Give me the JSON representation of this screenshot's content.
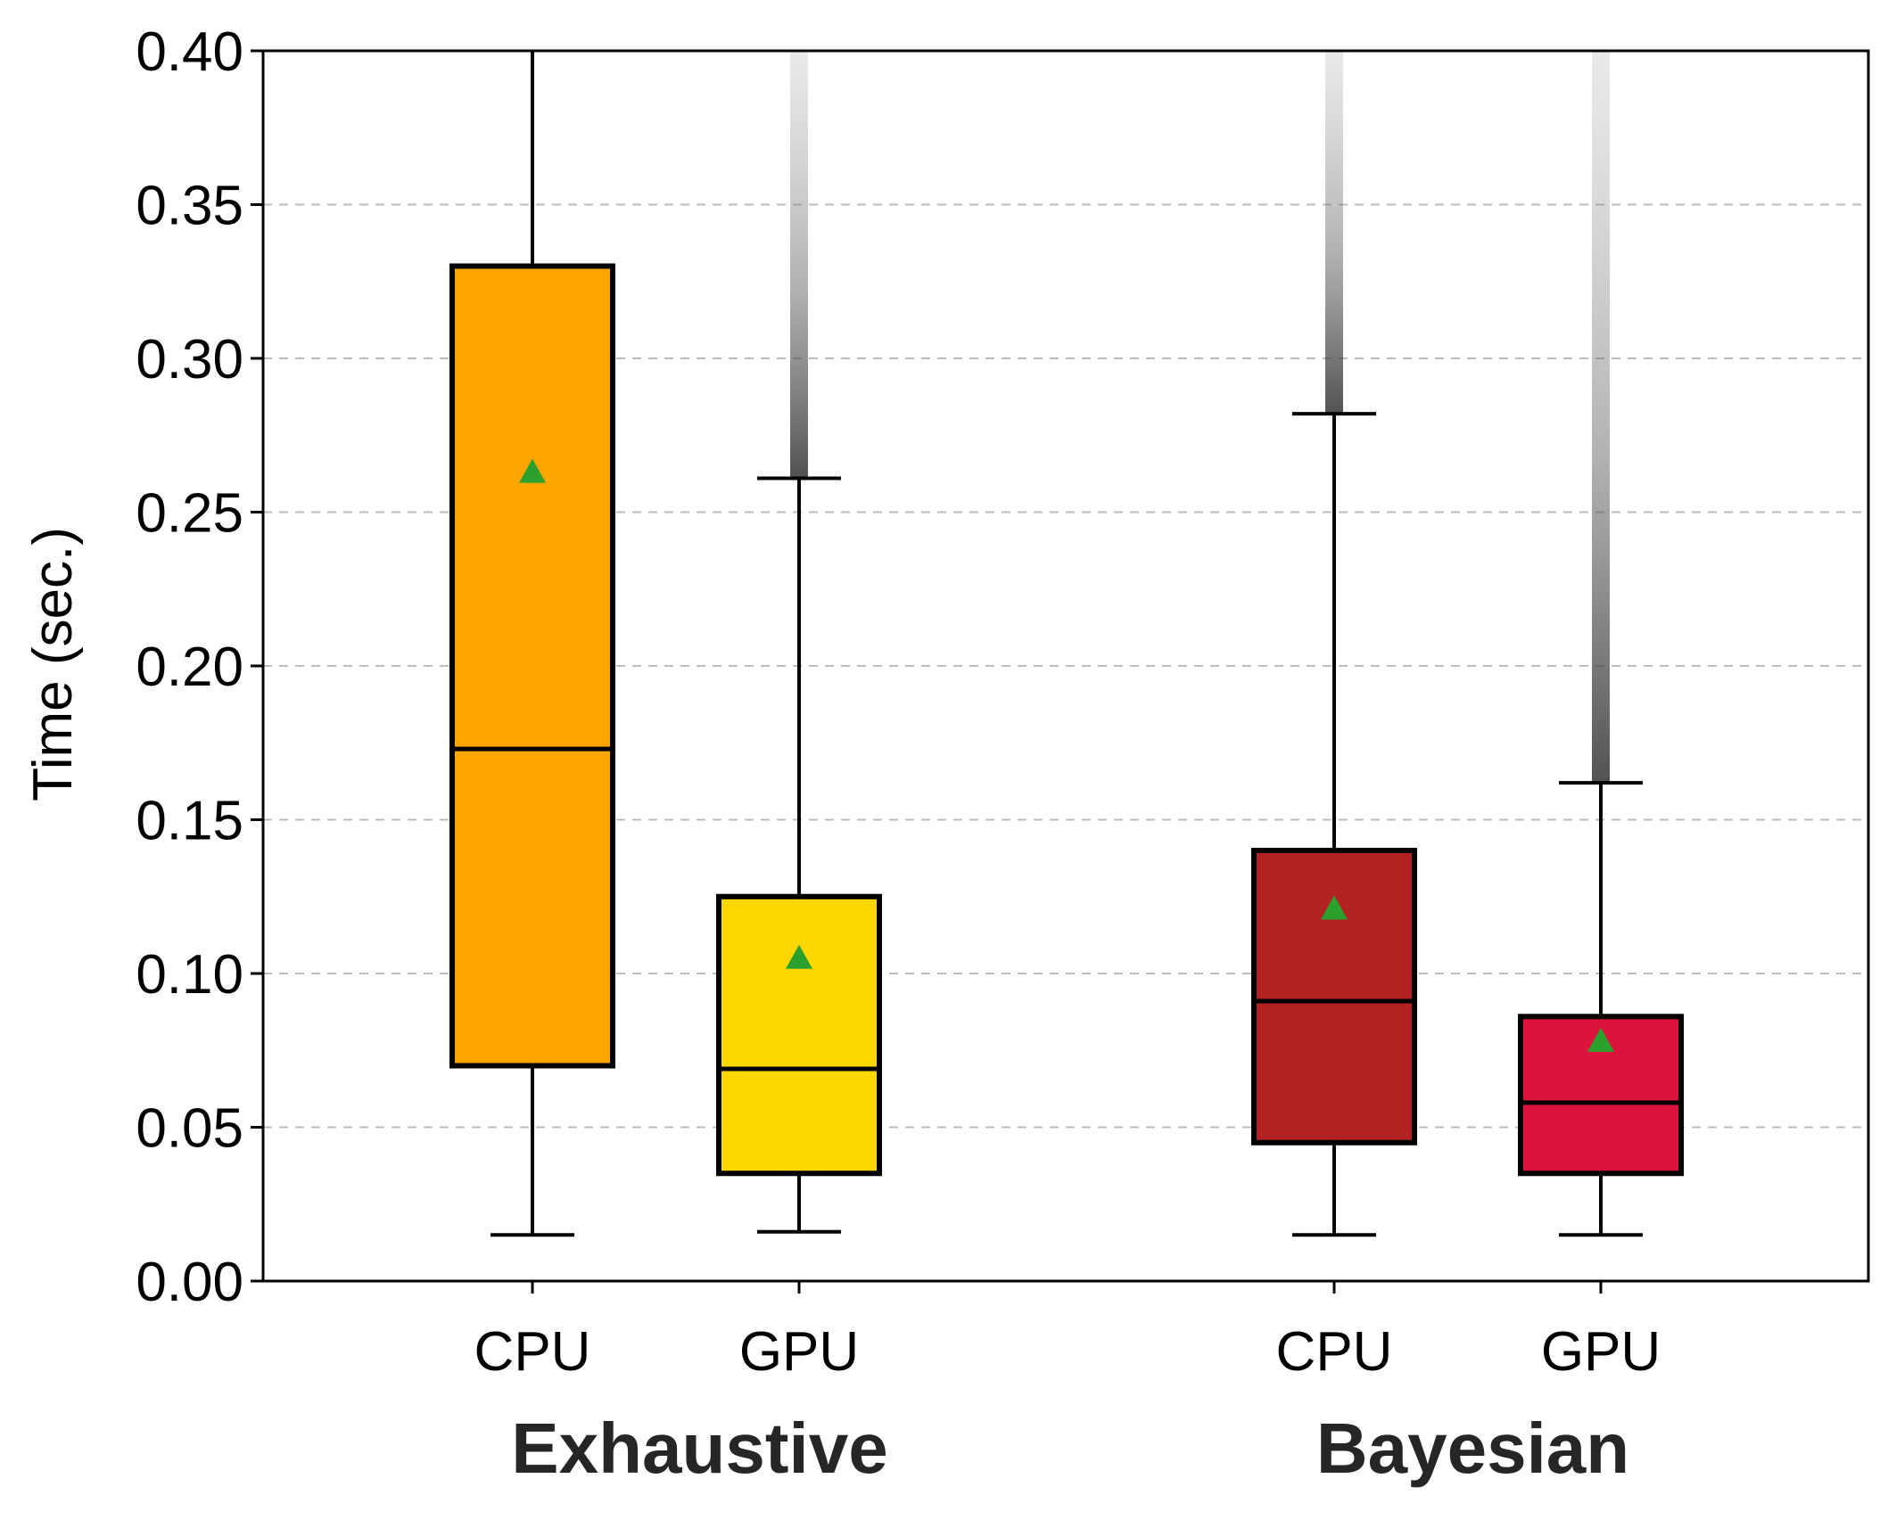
{
  "chart_data": {
    "type": "box",
    "ylabel": "Time (sec.)",
    "ylim": [
      0,
      0.4
    ],
    "yticks": [
      "0.00",
      "0.05",
      "0.10",
      "0.15",
      "0.20",
      "0.25",
      "0.30",
      "0.35",
      "0.40"
    ],
    "grid": "y-dashed",
    "groups": [
      {
        "label": "Exhaustive"
      },
      {
        "label": "Bayesian"
      }
    ],
    "boxes": [
      {
        "group": "Exhaustive",
        "label": "CPU",
        "color": "#FFA500",
        "whisker_low": 0.015,
        "q1": 0.07,
        "median": 0.173,
        "q3": 0.33,
        "whisker_high": 0.4,
        "mean": 0.263,
        "outliers": []
      },
      {
        "group": "Exhaustive",
        "label": "GPU",
        "color": "#FFD700",
        "whisker_low": 0.016,
        "q1": 0.035,
        "median": 0.069,
        "q3": 0.125,
        "whisker_high": 0.261,
        "mean": 0.105,
        "outliers": [
          0.261,
          0.4
        ]
      },
      {
        "group": "Bayesian",
        "label": "CPU",
        "color": "#B22222",
        "whisker_low": 0.015,
        "q1": 0.045,
        "median": 0.091,
        "q3": 0.14,
        "whisker_high": 0.282,
        "mean": 0.121,
        "outliers": [
          0.282,
          0.4
        ]
      },
      {
        "group": "Bayesian",
        "label": "GPU",
        "color": "#DC143C",
        "whisker_low": 0.015,
        "q1": 0.035,
        "median": 0.058,
        "q3": 0.086,
        "whisker_high": 0.162,
        "mean": 0.078,
        "outliers": [
          0.162,
          0.4
        ]
      }
    ],
    "mean_marker_color": "#2CA02C"
  }
}
